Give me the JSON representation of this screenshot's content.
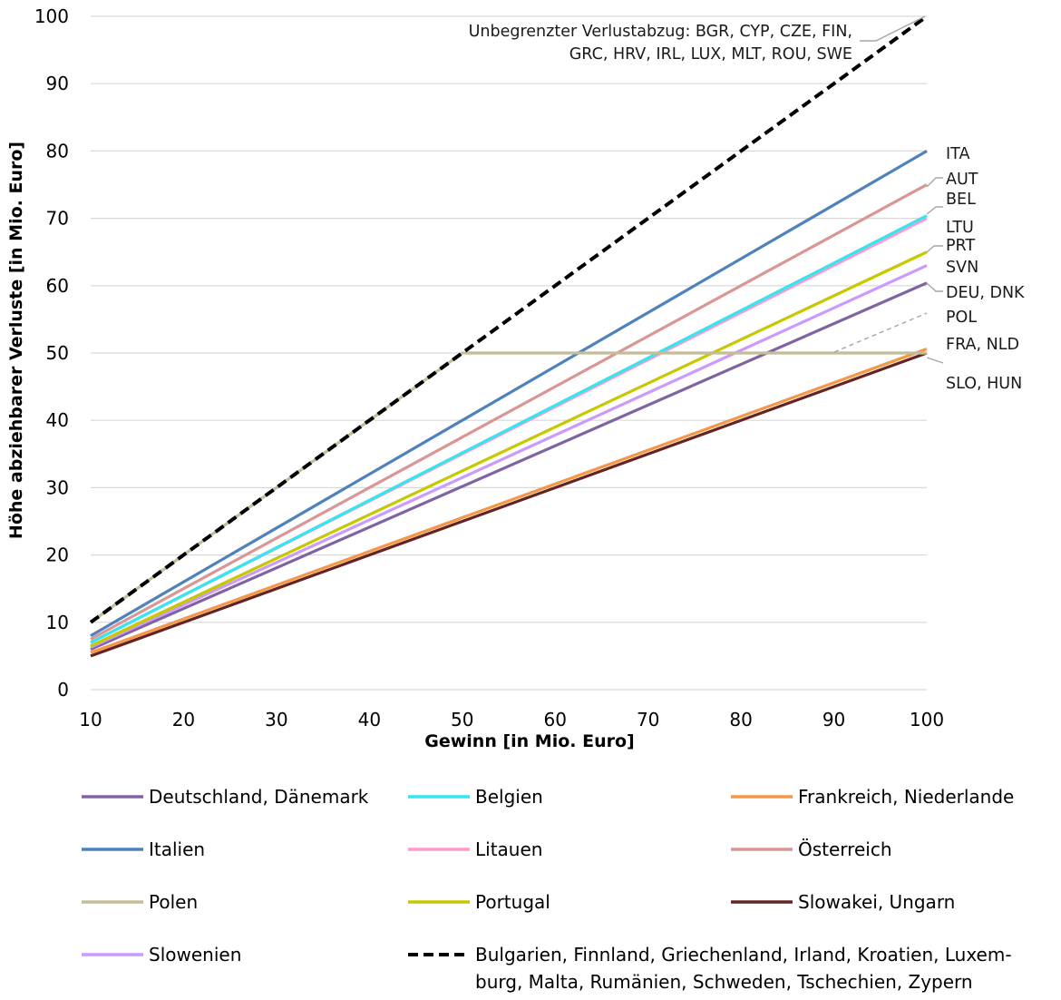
{
  "chart_data": {
    "type": "line",
    "title": "",
    "xlabel": "Gewinn [in Mio. Euro]",
    "ylabel": "Höhe abziehbarer Verluste [in Mio. Euro]",
    "xlim": [
      10,
      100
    ],
    "ylim": [
      0,
      100
    ],
    "xticks": [
      "10",
      "20",
      "30",
      "40",
      "50",
      "60",
      "70",
      "80",
      "90",
      "100"
    ],
    "yticks": [
      "0",
      "10",
      "20",
      "30",
      "40",
      "50",
      "60",
      "70",
      "80",
      "90",
      "100"
    ],
    "grid": "horizontal",
    "legend_position": "bottom",
    "series": [
      {
        "id": "deu",
        "name": "Deutschland, Dänemark",
        "color": "#8064a2",
        "dash": false,
        "x": [
          10,
          100
        ],
        "y": [
          6.0,
          60.4
        ]
      },
      {
        "id": "bel",
        "name": "Belgien",
        "color": "#33e6f0",
        "dash": false,
        "x": [
          10,
          100
        ],
        "y": [
          7.0,
          70.4
        ]
      },
      {
        "id": "fra",
        "name": "Frankreich, Niederlande",
        "color": "#f79646",
        "dash": false,
        "x": [
          10,
          100
        ],
        "y": [
          5.5,
          50.6
        ]
      },
      {
        "id": "ita",
        "name": "Italien",
        "color": "#4f81bd",
        "dash": false,
        "x": [
          10,
          100
        ],
        "y": [
          8.0,
          80.0
        ]
      },
      {
        "id": "ltu",
        "name": "Litauen",
        "color": "#ff99cc",
        "dash": false,
        "x": [
          10,
          100
        ],
        "y": [
          7.0,
          70.0
        ]
      },
      {
        "id": "aut",
        "name": "Österreich",
        "color": "#d99694",
        "dash": false,
        "x": [
          10,
          100
        ],
        "y": [
          7.5,
          75.0
        ]
      },
      {
        "id": "pol",
        "name": "Polen",
        "color": "#c4bd97",
        "dash": false,
        "x": [
          10,
          50,
          100
        ],
        "y": [
          10,
          50,
          50
        ]
      },
      {
        "id": "prt",
        "name": "Portugal",
        "color": "#c8c800",
        "dash": false,
        "x": [
          10,
          100
        ],
        "y": [
          6.5,
          65.0
        ]
      },
      {
        "id": "svk",
        "name": "Slowakei, Ungarn",
        "color": "#632523",
        "dash": false,
        "x": [
          10,
          100
        ],
        "y": [
          5.0,
          50.0
        ]
      },
      {
        "id": "svn",
        "name": "Slowenien",
        "color": "#cc99ff",
        "dash": false,
        "x": [
          10,
          100
        ],
        "y": [
          6.3,
          63.0
        ]
      },
      {
        "id": "unl",
        "name": "Bulgarien, Finnland, Griechenland, Irland, Kroatien, Luxem-\nburg, Malta, Rumänien, Schweden, Tschechien, Zypern",
        "color": "#000000",
        "dash": true,
        "x": [
          10,
          100
        ],
        "y": [
          10,
          100
        ]
      }
    ],
    "annotations": [
      {
        "id": "unl",
        "text": "Unbegrenzter Verlustabzug: BGR, CYP, CZE, FIN,\nGRC, HRV, IRL, LUX, MLT, ROU, SWE"
      },
      {
        "id": "ita",
        "text": "ITA"
      },
      {
        "id": "aut",
        "text": "AUT"
      },
      {
        "id": "bel",
        "text": "BEL"
      },
      {
        "id": "ltu",
        "text": "LTU"
      },
      {
        "id": "prt",
        "text": "PRT"
      },
      {
        "id": "svn",
        "text": "SVN"
      },
      {
        "id": "deu",
        "text": "DEU, DNK"
      },
      {
        "id": "pol",
        "text": "POL"
      },
      {
        "id": "fra",
        "text": "FRA, NLD"
      },
      {
        "id": "svk",
        "text": "SLO, HUN"
      }
    ],
    "legend_order": [
      "deu",
      "bel",
      "fra",
      "ita",
      "ltu",
      "aut",
      "pol",
      "prt",
      "svk",
      "svn",
      "unl"
    ]
  }
}
